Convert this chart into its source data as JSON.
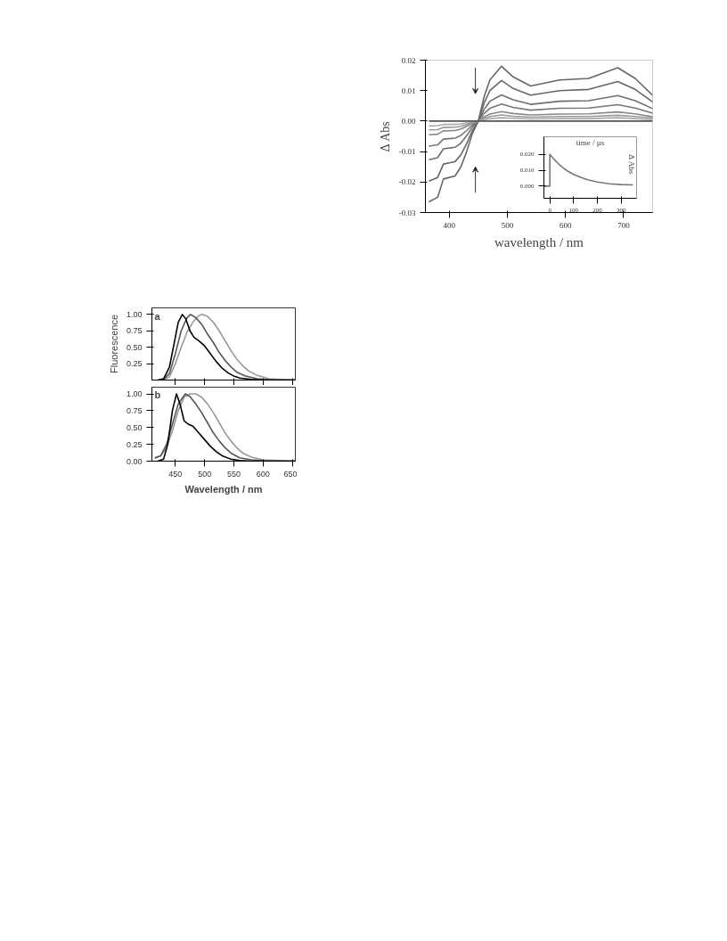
{
  "chart_data": [
    {
      "type": "line",
      "annotations": [
        "a"
      ],
      "ylabel": "Fluorescence",
      "xlim": [
        410,
        655
      ],
      "ylim": [
        0,
        1.1
      ],
      "xticks": [
        450,
        500,
        550,
        600,
        650
      ],
      "yticks": [
        {
          "value": 0.25,
          "label": "0.25"
        },
        {
          "value": 0.5,
          "label": "0.50"
        },
        {
          "value": 0.75,
          "label": "0.75"
        },
        {
          "value": 1.0,
          "label": "1.00"
        }
      ],
      "tick_labels": "y",
      "series": [
        {
          "color": "#999999",
          "x": [
            430,
            440,
            450,
            460,
            470,
            480,
            490,
            496,
            505,
            515,
            525,
            535,
            545,
            555,
            565,
            575,
            590,
            610,
            630,
            655
          ],
          "values": [
            0,
            0.05,
            0.25,
            0.5,
            0.73,
            0.88,
            0.98,
            1.0,
            0.97,
            0.88,
            0.75,
            0.6,
            0.45,
            0.32,
            0.22,
            0.14,
            0.07,
            0.02,
            0.01,
            0
          ]
        },
        {
          "color": "#555555",
          "x": [
            430,
            440,
            450,
            460,
            470,
            476,
            485,
            495,
            505,
            515,
            525,
            535,
            545,
            555,
            570,
            590,
            620,
            655
          ],
          "values": [
            0.01,
            0.1,
            0.4,
            0.75,
            0.95,
            1.0,
            0.95,
            0.85,
            0.7,
            0.57,
            0.42,
            0.3,
            0.2,
            0.12,
            0.06,
            0.02,
            0,
            0
          ]
        },
        {
          "color": "#000000",
          "x": [
            420,
            430,
            440,
            450,
            455,
            462,
            468,
            475,
            482,
            490,
            500,
            510,
            520,
            530,
            540,
            550,
            560,
            580,
            600,
            655
          ],
          "values": [
            0,
            0.02,
            0.2,
            0.65,
            0.88,
            1.0,
            0.93,
            0.75,
            0.65,
            0.6,
            0.52,
            0.4,
            0.28,
            0.18,
            0.11,
            0.06,
            0.03,
            0.01,
            0,
            0
          ]
        }
      ]
    },
    {
      "type": "line",
      "annotations": [
        "b"
      ],
      "xlabel": "Wavelength / nm",
      "xlim": [
        410,
        655
      ],
      "ylim": [
        0,
        1.1
      ],
      "xticks": [
        450,
        500,
        550,
        600,
        650
      ],
      "yticks": [
        {
          "value": 0,
          "label": "0.00"
        },
        {
          "value": 0.25,
          "label": "0.25"
        },
        {
          "value": 0.5,
          "label": "0.50"
        },
        {
          "value": 0.75,
          "label": "0.75"
        },
        {
          "value": 1.0,
          "label": "1.00"
        }
      ],
      "series": [
        {
          "color": "#999999",
          "x": [
            415,
            425,
            435,
            445,
            455,
            465,
            475,
            485,
            495,
            505,
            515,
            525,
            535,
            545,
            555,
            565,
            580,
            600,
            630,
            655
          ],
          "values": [
            0.04,
            0.08,
            0.2,
            0.45,
            0.75,
            0.95,
            1.0,
            1.0,
            0.95,
            0.85,
            0.72,
            0.57,
            0.42,
            0.3,
            0.2,
            0.12,
            0.06,
            0.02,
            0.01,
            0
          ]
        },
        {
          "color": "#555555",
          "x": [
            415,
            425,
            435,
            445,
            455,
            467,
            475,
            485,
            495,
            505,
            515,
            525,
            535,
            545,
            560,
            580,
            610,
            655
          ],
          "values": [
            0.05,
            0.08,
            0.25,
            0.55,
            0.85,
            1.0,
            0.96,
            0.85,
            0.72,
            0.57,
            0.42,
            0.3,
            0.2,
            0.12,
            0.05,
            0.02,
            0,
            0
          ]
        },
        {
          "color": "#000000",
          "x": [
            420,
            430,
            437,
            445,
            452,
            458,
            465,
            472,
            480,
            490,
            500,
            510,
            520,
            530,
            545,
            560,
            580,
            655
          ],
          "values": [
            0,
            0.03,
            0.25,
            0.75,
            1.0,
            0.85,
            0.6,
            0.55,
            0.52,
            0.42,
            0.32,
            0.22,
            0.14,
            0.08,
            0.03,
            0.01,
            0,
            0
          ]
        }
      ]
    },
    {
      "type": "line",
      "xlabel": "wavelength / nm",
      "ylabel": "Δ Abs",
      "xlim": [
        359,
        750
      ],
      "ylim": [
        -0.03,
        0.02
      ],
      "xticks": [
        400,
        500,
        600,
        700
      ],
      "yticks": [
        {
          "value": -0.03,
          "label": "-0.03"
        },
        {
          "value": -0.02,
          "label": "-0.02"
        },
        {
          "value": -0.01,
          "label": "-0.01"
        },
        {
          "value": 0,
          "label": "0.00"
        },
        {
          "value": 0.01,
          "label": "0.01"
        },
        {
          "value": 0.02,
          "label": "0.02"
        }
      ],
      "x": [
        365,
        380,
        390,
        410,
        420,
        430,
        440,
        450,
        460,
        470,
        490,
        510,
        540,
        590,
        640,
        690,
        720,
        750
      ],
      "series": [
        {
          "color": "#666666",
          "values": [
            -0.0265,
            -0.025,
            -0.019,
            -0.018,
            -0.015,
            -0.01,
            -0.004,
            0,
            0.008,
            0.0135,
            0.018,
            0.0145,
            0.0115,
            0.0135,
            0.014,
            0.0175,
            0.014,
            0.0085
          ]
        },
        {
          "color": "#666666",
          "values": [
            -0.0197,
            -0.0185,
            -0.0141,
            -0.0133,
            -0.0111,
            -0.0074,
            -0.003,
            0,
            0.0059,
            0.01,
            0.0133,
            0.0107,
            0.0085,
            0.01,
            0.0104,
            0.013,
            0.0104,
            0.0063
          ]
        },
        {
          "color": "#6e6e6e",
          "values": [
            -0.0127,
            -0.012,
            -0.0091,
            -0.0086,
            -0.0072,
            -0.0048,
            -0.0019,
            0,
            0.0038,
            0.0065,
            0.0086,
            0.007,
            0.0055,
            0.0065,
            0.0067,
            0.0084,
            0.0067,
            0.0041
          ]
        },
        {
          "color": "#777777",
          "values": [
            -0.0082,
            -0.0078,
            -0.0059,
            -0.0056,
            -0.0047,
            -0.0031,
            -0.0012,
            0,
            0.0025,
            0.0042,
            0.0056,
            0.0045,
            0.0036,
            0.0042,
            0.0043,
            0.0054,
            0.0043,
            0.0026
          ]
        },
        {
          "color": "#888888",
          "values": [
            -0.0045,
            -0.0043,
            -0.0032,
            -0.0031,
            -0.0026,
            -0.0017,
            -0.0007,
            0,
            0.0014,
            0.0023,
            0.0031,
            0.0025,
            0.002,
            0.0023,
            0.0024,
            0.003,
            0.0024,
            0.0014
          ]
        },
        {
          "color": "#999999",
          "values": [
            -0.0029,
            -0.0028,
            -0.0021,
            -0.002,
            -0.0017,
            -0.0011,
            -0.0004,
            0,
            0.0009,
            0.0015,
            0.002,
            0.0016,
            0.0013,
            0.0015,
            0.0015,
            0.0019,
            0.0015,
            0.0009
          ]
        },
        {
          "color": "#aaaaaa",
          "values": [
            -0.0016,
            -0.0015,
            -0.0011,
            -0.0011,
            -0.0009,
            -0.0006,
            -0.0002,
            0,
            0.0005,
            0.0008,
            0.0011,
            0.0009,
            0.0007,
            0.0008,
            0.0008,
            0.0011,
            0.0008,
            0.0005
          ]
        },
        {
          "color": "#555555",
          "values": [
            0,
            0,
            0,
            0,
            0,
            0,
            0,
            0,
            0,
            0,
            0,
            0,
            0,
            0,
            0,
            0,
            0,
            0
          ]
        }
      ]
    },
    {
      "type": "line",
      "xlabel": "time / µs",
      "ylabel": "Δ Abs",
      "xlim": [
        -25,
        365
      ],
      "ylim": [
        -0.0076,
        0.031
      ],
      "xticks": [
        0,
        100,
        200,
        300
      ],
      "yticks": [
        {
          "value": 0,
          "label": "0.000"
        },
        {
          "value": 0.01,
          "label": "0.010"
        },
        {
          "value": 0.02,
          "label": "0.020"
        }
      ],
      "series": [
        {
          "color": "#777777",
          "x": [
            -25,
            0,
            0,
            20,
            40,
            60,
            80,
            100,
            130,
            160,
            200,
            250,
            300,
            350
          ],
          "values": [
            0,
            0,
            0.02,
            0.0165,
            0.0135,
            0.011,
            0.009,
            0.0074,
            0.0055,
            0.004,
            0.0026,
            0.0015,
            0.001,
            0.0008
          ]
        }
      ]
    }
  ]
}
